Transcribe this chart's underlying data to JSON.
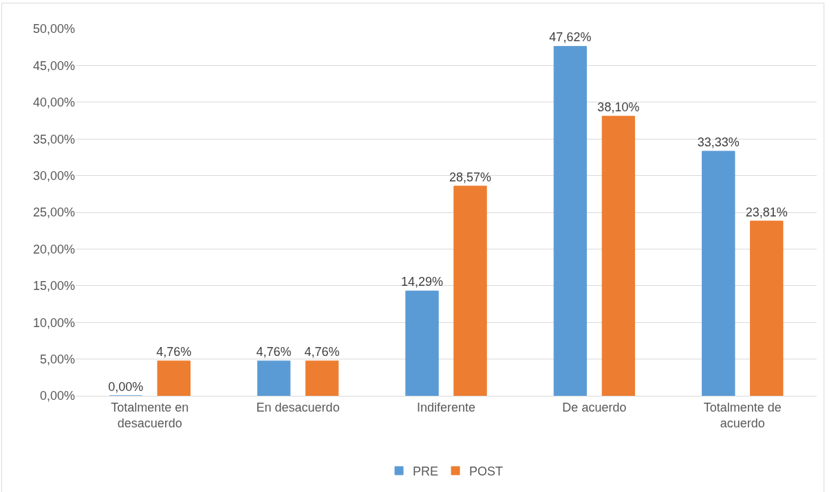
{
  "chart_data": {
    "type": "bar",
    "categories": [
      "Totalmente en desacuerdo",
      "En desacuerdo",
      "Indiferente",
      "De acuerdo",
      "Totalmente de acuerdo"
    ],
    "series": [
      {
        "name": "PRE",
        "color": "#5b9bd5",
        "values": [
          0.0,
          4.76,
          14.29,
          47.62,
          33.33
        ],
        "value_labels": [
          "0,00%",
          "4,76%",
          "14,29%",
          "47,62%",
          "33,33%"
        ]
      },
      {
        "name": "POST",
        "color": "#ed7d31",
        "values": [
          4.76,
          4.76,
          28.57,
          38.1,
          23.81
        ],
        "value_labels": [
          "4,76%",
          "4,76%",
          "28,57%",
          "38,10%",
          "23,81%"
        ]
      }
    ],
    "ylim": [
      0,
      50
    ],
    "yticks": [
      {
        "value": 0,
        "label": "0,00%"
      },
      {
        "value": 5,
        "label": "5,00%"
      },
      {
        "value": 10,
        "label": "10,00%"
      },
      {
        "value": 15,
        "label": "15,00%"
      },
      {
        "value": 20,
        "label": "20,00%"
      },
      {
        "value": 25,
        "label": "25,00%"
      },
      {
        "value": 30,
        "label": "30,00%"
      },
      {
        "value": 35,
        "label": "35,00%"
      },
      {
        "value": 40,
        "label": "40,00%"
      },
      {
        "value": 45,
        "label": "45,00%"
      },
      {
        "value": 50,
        "label": "50,00%"
      }
    ],
    "grid": "y",
    "legend": "bottom"
  }
}
